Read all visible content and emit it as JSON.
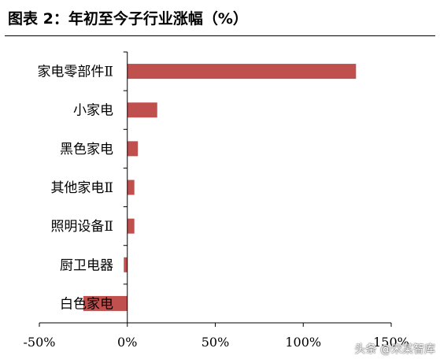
{
  "title": "图表 2：年初至今子行业涨幅（%）",
  "watermark": "头条 @宋某智库",
  "chart_data": {
    "type": "bar",
    "orientation": "horizontal",
    "categories": [
      "家电零部件Ⅱ",
      "小家电",
      "黑色家电",
      "其他家电Ⅱ",
      "照明设备Ⅱ",
      "厨卫电器",
      "白色家电"
    ],
    "values": [
      1.3,
      0.17,
      0.06,
      0.04,
      0.04,
      -0.02,
      -0.25
    ],
    "xlim": [
      -0.5,
      1.5
    ],
    "ticks": [
      -0.5,
      0,
      0.5,
      1.0,
      1.5
    ],
    "tick_labels": [
      "-50%",
      "0%",
      "50%",
      "100%",
      "150%"
    ],
    "bar_color": "#c0504d",
    "grid": false
  }
}
